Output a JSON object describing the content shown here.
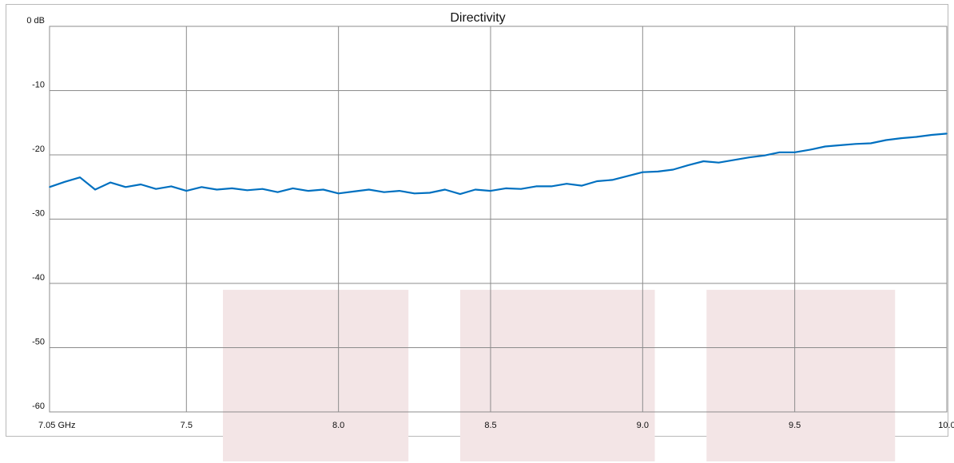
{
  "chart_data": {
    "type": "line",
    "title": "Directivity",
    "xlabel": "",
    "ylabel": "",
    "xlim": [
      7.05,
      10.0
    ],
    "ylim": [
      -60,
      0
    ],
    "x_ticks": [
      {
        "value": 7.05,
        "label": "7.05 GHz"
      },
      {
        "value": 7.5,
        "label": "7.5"
      },
      {
        "value": 8.0,
        "label": "8.0"
      },
      {
        "value": 8.5,
        "label": "8.5"
      },
      {
        "value": 9.0,
        "label": "9.0"
      },
      {
        "value": 9.5,
        "label": "9.5"
      },
      {
        "value": 10.0,
        "label": "10.0"
      }
    ],
    "y_ticks": [
      {
        "value": 0,
        "label": "0 dB"
      },
      {
        "value": -10,
        "label": "-10"
      },
      {
        "value": -20,
        "label": "-20"
      },
      {
        "value": -30,
        "label": "-30"
      },
      {
        "value": -40,
        "label": "-40"
      },
      {
        "value": -50,
        "label": "-50"
      },
      {
        "value": -60,
        "label": "-60"
      }
    ],
    "grid": true,
    "line_color": "#0070c0",
    "band_color": "#f3e5e6",
    "shaded_bands": [
      {
        "x_start": 7.62,
        "x_end": 8.23,
        "y_top": -41
      },
      {
        "x_start": 8.4,
        "x_end": 9.04,
        "y_top": -41
      },
      {
        "x_start": 9.21,
        "x_end": 9.83,
        "y_top": -41
      }
    ],
    "series": [
      {
        "x": [
          7.05,
          7.1,
          7.15,
          7.2,
          7.25,
          7.3,
          7.35,
          7.4,
          7.45,
          7.5,
          7.55,
          7.6,
          7.65,
          7.7,
          7.75,
          7.8,
          7.85,
          7.9,
          7.95,
          8.0,
          8.05,
          8.1,
          8.15,
          8.2,
          8.25,
          8.3,
          8.35,
          8.4,
          8.45,
          8.5,
          8.55,
          8.6,
          8.65,
          8.7,
          8.75,
          8.8,
          8.85,
          8.9,
          8.95,
          9.0,
          9.05,
          9.1,
          9.15,
          9.2,
          9.25,
          9.3,
          9.35,
          9.4,
          9.45,
          9.5,
          9.55,
          9.6,
          9.65,
          9.7,
          9.75,
          9.8,
          9.85,
          9.9,
          9.95,
          10.0
        ],
        "y": [
          -25.0,
          -24.2,
          -23.5,
          -25.4,
          -24.3,
          -25.0,
          -24.6,
          -25.3,
          -24.9,
          -25.6,
          -25.0,
          -25.4,
          -25.2,
          -25.5,
          -25.3,
          -25.8,
          -25.2,
          -25.6,
          -25.4,
          -26.0,
          -25.7,
          -25.4,
          -25.8,
          -25.6,
          -26.0,
          -25.9,
          -25.4,
          -26.1,
          -25.4,
          -25.6,
          -25.2,
          -25.3,
          -24.9,
          -24.9,
          -24.5,
          -24.8,
          -24.1,
          -23.9,
          -23.3,
          -22.7,
          -22.6,
          -22.3,
          -21.6,
          -21.0,
          -21.2,
          -20.8,
          -20.4,
          -20.1,
          -19.6,
          -19.6,
          -19.2,
          -18.7,
          -18.5,
          -18.3,
          -18.2,
          -17.7,
          -17.4,
          -17.2,
          -16.9,
          -16.7
        ]
      }
    ]
  }
}
